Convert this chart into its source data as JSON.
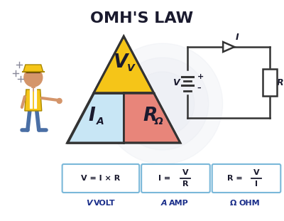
{
  "title": "OMH'S LAW",
  "title_fontsize": 16,
  "title_fontweight": "bold",
  "bg_color": "#ffffff",
  "triangle_top_color": "#f5c518",
  "triangle_left_color": "#c8e6f5",
  "triangle_right_color": "#e8857a",
  "triangle_outline_color": "#333333",
  "formula_box_outline": "#7ab8d9",
  "text_dark": "#1a1a2e",
  "circuit_color": "#333333",
  "label_color": "#1a2e8a",
  "bg_circle_color": "#d8dde8",
  "formula1": "V = I × R",
  "formula2_lhs": "I =",
  "formula2_num": "V",
  "formula2_den": "R",
  "formula3_lhs": "R =",
  "formula3_num": "V",
  "formula3_den": "I",
  "label_v": "V",
  "label_volt": "VOLT",
  "label_a": "A",
  "label_amp": "AMP",
  "label_omega": "Ω",
  "label_ohm": "OHM",
  "tri_V": "V",
  "tri_Vsub": "V",
  "tri_I": "I",
  "tri_Isub": "A",
  "tri_R": "R",
  "tri_Rsub": "Ω",
  "person_skin": "#d4956a",
  "person_hat": "#f5c518",
  "person_vest": "#f5c518",
  "person_pants": "#4a6fa5",
  "person_shoes": "#333355"
}
